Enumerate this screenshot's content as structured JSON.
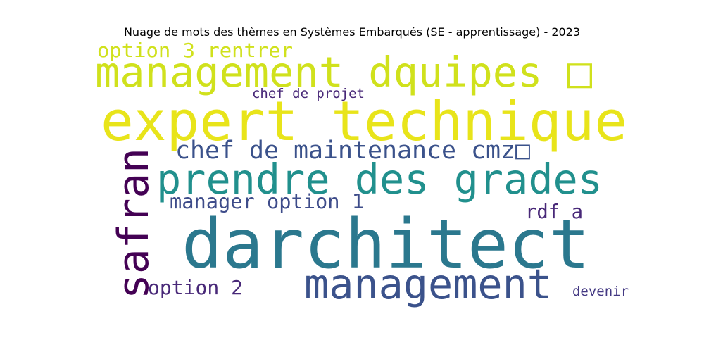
{
  "chart_data": {
    "type": "wordcloud",
    "title": "Nuage de mots des thèmes en Systèmes Embarqués (SE - apprentissage) - 2023",
    "colormap": "viridis",
    "background": "#ffffff",
    "words": [
      {
        "text": "darchitect",
        "weight": 1.0,
        "color": "#2b788e"
      },
      {
        "text": "expert technique",
        "weight": 0.78,
        "color": "#e8e41a"
      },
      {
        "text": "management",
        "weight": 0.6,
        "color": "#3b528b"
      },
      {
        "text": "prendre des grades",
        "weight": 0.58,
        "color": "#21908d"
      },
      {
        "text": "management dquipes □",
        "weight": 0.55,
        "color": "#d0e11c"
      },
      {
        "text": "safran",
        "weight": 0.53,
        "color": "#440154"
      },
      {
        "text": "chef de maintenance cmz□",
        "weight": 0.3,
        "color": "#3b528b"
      },
      {
        "text": "option 3  rentrer",
        "weight": 0.27,
        "color": "#d0e11c"
      },
      {
        "text": "option 2",
        "weight": 0.27,
        "color": "#482878"
      },
      {
        "text": "manager option 1",
        "weight": 0.27,
        "color": "#3e4c8a"
      },
      {
        "text": "rdf a",
        "weight": 0.25,
        "color": "#482878"
      },
      {
        "text": "chef de projet",
        "weight": 0.2,
        "color": "#482878"
      },
      {
        "text": "devenir",
        "weight": 0.2,
        "color": "#443983"
      }
    ]
  }
}
